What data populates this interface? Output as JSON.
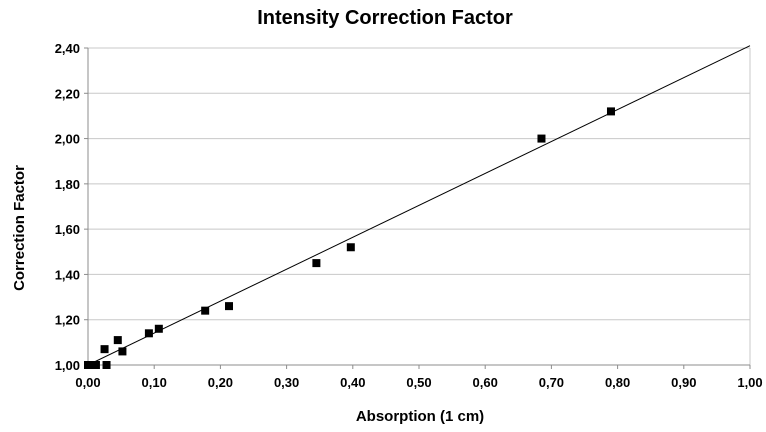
{
  "chart_data": {
    "type": "scatter",
    "title": "Intensity Correction Factor",
    "xlabel": "Absorption (1 cm)",
    "ylabel": "Correction Factor",
    "xlim": [
      0.0,
      1.0
    ],
    "ylim": [
      1.0,
      2.4
    ],
    "x_ticks": [
      0.0,
      0.1,
      0.2,
      0.3,
      0.4,
      0.5,
      0.6,
      0.7,
      0.8,
      0.9,
      1.0
    ],
    "y_ticks": [
      1.0,
      1.2,
      1.4,
      1.6,
      1.8,
      2.0,
      2.2,
      2.4
    ],
    "x_tick_labels": [
      "0,00",
      "0,10",
      "0,20",
      "0,30",
      "0,40",
      "0,50",
      "0,60",
      "0,70",
      "0,80",
      "0,90",
      "1,00"
    ],
    "y_tick_labels": [
      "1,00",
      "1,20",
      "1,40",
      "1,60",
      "1,80",
      "2,00",
      "2,20",
      "2,40"
    ],
    "grid": {
      "horizontal": true,
      "vertical": false
    },
    "legend": "none",
    "series": [
      {
        "marker": "square",
        "points": [
          {
            "x": 0.0,
            "y": 1.0
          },
          {
            "x": 0.003,
            "y": 1.0
          },
          {
            "x": 0.007,
            "y": 1.0
          },
          {
            "x": 0.012,
            "y": 1.0
          },
          {
            "x": 0.025,
            "y": 1.07
          },
          {
            "x": 0.028,
            "y": 1.0
          },
          {
            "x": 0.045,
            "y": 1.11
          },
          {
            "x": 0.052,
            "y": 1.06
          },
          {
            "x": 0.092,
            "y": 1.14
          },
          {
            "x": 0.107,
            "y": 1.16
          },
          {
            "x": 0.177,
            "y": 1.24
          },
          {
            "x": 0.213,
            "y": 1.26
          },
          {
            "x": 0.345,
            "y": 1.45
          },
          {
            "x": 0.397,
            "y": 1.52
          },
          {
            "x": 0.685,
            "y": 2.0
          },
          {
            "x": 0.79,
            "y": 2.12
          }
        ]
      }
    ],
    "trendline": {
      "type": "linear",
      "x": [
        0.0,
        1.0
      ],
      "y": [
        1.0,
        2.41
      ]
    },
    "colors": {
      "marker": "#000000",
      "line": "#000000",
      "grid": "#c8c8c8",
      "axis": "#8c8c8c"
    }
  }
}
